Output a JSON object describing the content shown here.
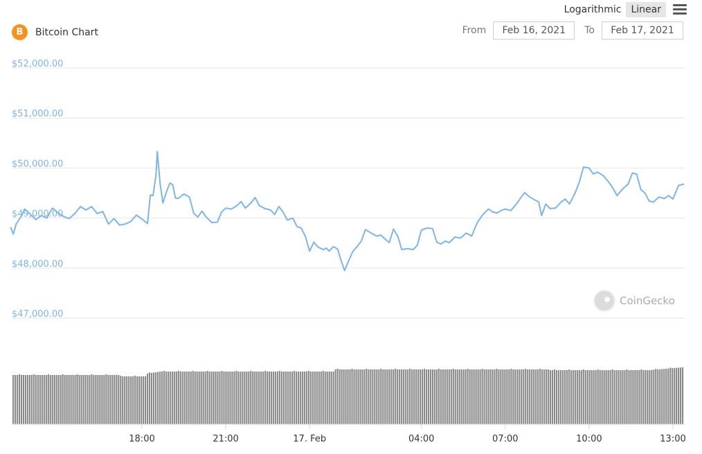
{
  "toolbar": {
    "logarithmic_label": "Logarithmic",
    "linear_label": "Linear",
    "active_scale": "Linear"
  },
  "brand": {
    "icon_glyph": "B",
    "title": "Bitcoin Chart"
  },
  "date_range": {
    "from_label": "From",
    "from_value": "Feb 16, 2021",
    "to_label": "To",
    "to_value": "Feb 17, 2021"
  },
  "watermark": "CoinGecko",
  "colors": {
    "line": "#7cb5ec",
    "volume_bar": "#888888",
    "brand": "#f7931a",
    "axis_label": "#7cb5ec",
    "grid": "#e6e6e6"
  },
  "chart_data": {
    "type": "line",
    "ylim": [
      46800,
      52200
    ],
    "y_ticks": [
      47000,
      48000,
      49000,
      50000,
      51000,
      52000
    ],
    "y_tick_labels": [
      "$47,000.00",
      "$48,000.00",
      "$49,000.00",
      "$50,000.00",
      "$51,000.00",
      "$52,000.00"
    ],
    "x_ticks": [
      {
        "hour": 18,
        "label": "18:00"
      },
      {
        "hour": 21,
        "label": "21:00"
      },
      {
        "hour": 24,
        "label": "17. Feb"
      },
      {
        "hour": 28,
        "label": "04:00"
      },
      {
        "hour": 31,
        "label": "07:00"
      },
      {
        "hour": 34,
        "label": "10:00"
      },
      {
        "hour": 37,
        "label": "13:00"
      }
    ],
    "x_range_hours": [
      13.3,
      37.4
    ],
    "series": [
      {
        "values": [
          [
            13.3,
            48820
          ],
          [
            13.4,
            48680
          ],
          [
            13.5,
            48880
          ],
          [
            13.7,
            49050
          ],
          [
            13.8,
            49180
          ],
          [
            14.0,
            49080
          ],
          [
            14.2,
            48970
          ],
          [
            14.4,
            49050
          ],
          [
            14.6,
            49000
          ],
          [
            14.8,
            49200
          ],
          [
            15.0,
            49100
          ],
          [
            15.2,
            49030
          ],
          [
            15.4,
            48990
          ],
          [
            15.6,
            49090
          ],
          [
            15.8,
            49230
          ],
          [
            16.0,
            49160
          ],
          [
            16.2,
            49230
          ],
          [
            16.4,
            49090
          ],
          [
            16.6,
            49130
          ],
          [
            16.8,
            48880
          ],
          [
            17.0,
            48990
          ],
          [
            17.2,
            48860
          ],
          [
            17.4,
            48880
          ],
          [
            17.6,
            48930
          ],
          [
            17.8,
            49060
          ],
          [
            18.0,
            48980
          ],
          [
            18.2,
            48890
          ],
          [
            18.3,
            49460
          ],
          [
            18.4,
            49450
          ],
          [
            18.5,
            49850
          ],
          [
            18.55,
            50330
          ],
          [
            18.65,
            49700
          ],
          [
            18.75,
            49300
          ],
          [
            18.9,
            49560
          ],
          [
            19.0,
            49700
          ],
          [
            19.1,
            49670
          ],
          [
            19.2,
            49400
          ],
          [
            19.3,
            49390
          ],
          [
            19.5,
            49480
          ],
          [
            19.7,
            49420
          ],
          [
            19.85,
            49100
          ],
          [
            20.0,
            49020
          ],
          [
            20.15,
            49140
          ],
          [
            20.3,
            49020
          ],
          [
            20.5,
            48910
          ],
          [
            20.7,
            48920
          ],
          [
            20.85,
            49120
          ],
          [
            21.0,
            49200
          ],
          [
            21.2,
            49180
          ],
          [
            21.4,
            49250
          ],
          [
            21.55,
            49330
          ],
          [
            21.7,
            49200
          ],
          [
            21.9,
            49300
          ],
          [
            22.05,
            49410
          ],
          [
            22.2,
            49250
          ],
          [
            22.4,
            49190
          ],
          [
            22.6,
            49160
          ],
          [
            22.75,
            49070
          ],
          [
            22.9,
            49230
          ],
          [
            23.05,
            49120
          ],
          [
            23.2,
            48960
          ],
          [
            23.4,
            49000
          ],
          [
            23.55,
            48830
          ],
          [
            23.7,
            48800
          ],
          [
            23.85,
            48630
          ],
          [
            24.0,
            48340
          ],
          [
            24.15,
            48520
          ],
          [
            24.3,
            48420
          ],
          [
            24.5,
            48370
          ],
          [
            24.6,
            48400
          ],
          [
            24.7,
            48340
          ],
          [
            24.85,
            48430
          ],
          [
            25.0,
            48380
          ],
          [
            25.1,
            48200
          ],
          [
            25.25,
            47950
          ],
          [
            25.4,
            48150
          ],
          [
            25.55,
            48340
          ],
          [
            25.7,
            48430
          ],
          [
            25.85,
            48540
          ],
          [
            26.0,
            48770
          ],
          [
            26.2,
            48700
          ],
          [
            26.4,
            48640
          ],
          [
            26.55,
            48660
          ],
          [
            26.7,
            48580
          ],
          [
            26.85,
            48510
          ],
          [
            27.0,
            48780
          ],
          [
            27.15,
            48640
          ],
          [
            27.3,
            48370
          ],
          [
            27.5,
            48390
          ],
          [
            27.7,
            48370
          ],
          [
            27.85,
            48450
          ],
          [
            28.0,
            48760
          ],
          [
            28.2,
            48800
          ],
          [
            28.4,
            48790
          ],
          [
            28.55,
            48520
          ],
          [
            28.7,
            48480
          ],
          [
            28.85,
            48540
          ],
          [
            29.0,
            48510
          ],
          [
            29.2,
            48620
          ],
          [
            29.4,
            48600
          ],
          [
            29.6,
            48700
          ],
          [
            29.8,
            48640
          ],
          [
            30.0,
            48910
          ],
          [
            30.2,
            49070
          ],
          [
            30.4,
            49180
          ],
          [
            30.55,
            49120
          ],
          [
            30.7,
            49100
          ],
          [
            30.85,
            49150
          ],
          [
            31.0,
            49180
          ],
          [
            31.2,
            49150
          ],
          [
            31.4,
            49280
          ],
          [
            31.55,
            49400
          ],
          [
            31.7,
            49510
          ],
          [
            31.85,
            49430
          ],
          [
            32.0,
            49380
          ],
          [
            32.2,
            49320
          ],
          [
            32.3,
            49050
          ],
          [
            32.45,
            49280
          ],
          [
            32.6,
            49190
          ],
          [
            32.8,
            49200
          ],
          [
            33.0,
            49320
          ],
          [
            33.15,
            49380
          ],
          [
            33.3,
            49280
          ],
          [
            33.5,
            49500
          ],
          [
            33.65,
            49720
          ],
          [
            33.8,
            50020
          ],
          [
            34.0,
            50000
          ],
          [
            34.15,
            49880
          ],
          [
            34.3,
            49920
          ],
          [
            34.5,
            49850
          ],
          [
            34.7,
            49720
          ],
          [
            34.85,
            49600
          ],
          [
            35.0,
            49450
          ],
          [
            35.2,
            49580
          ],
          [
            35.4,
            49680
          ],
          [
            35.55,
            49900
          ],
          [
            35.7,
            49880
          ],
          [
            35.85,
            49570
          ],
          [
            36.0,
            49500
          ],
          [
            36.15,
            49340
          ],
          [
            36.3,
            49320
          ],
          [
            36.5,
            49420
          ],
          [
            36.7,
            49390
          ],
          [
            36.85,
            49450
          ],
          [
            37.0,
            49380
          ],
          [
            37.2,
            49650
          ],
          [
            37.4,
            49680
          ]
        ]
      }
    ]
  }
}
